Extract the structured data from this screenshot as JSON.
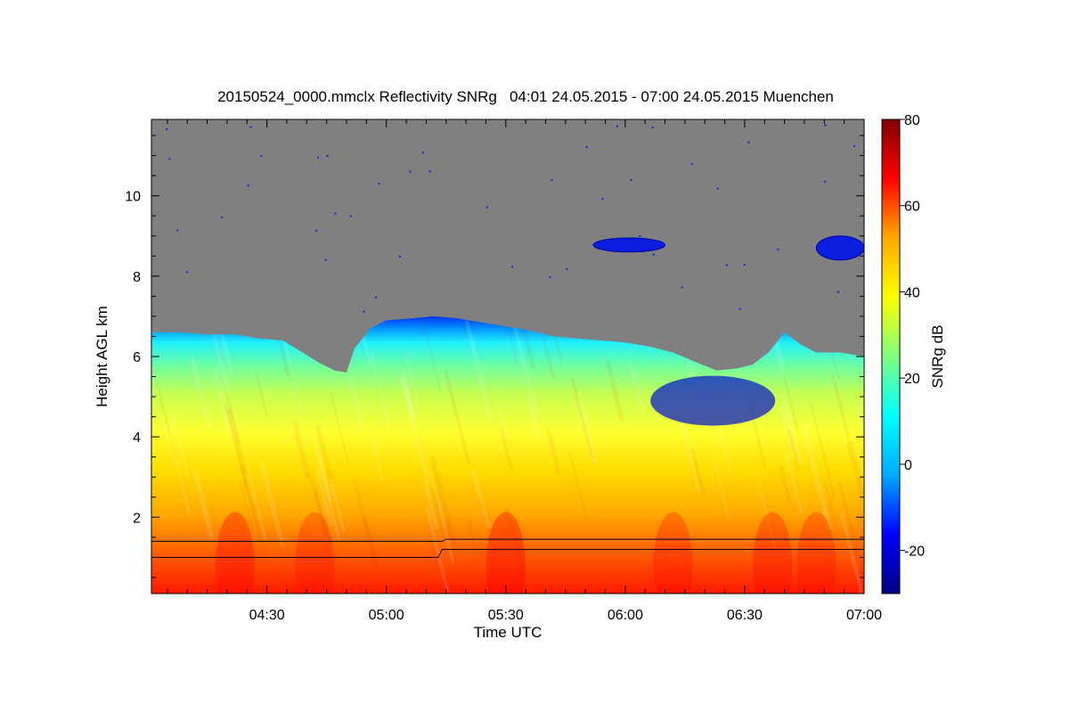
{
  "chart_data": {
    "type": "heatmap",
    "title": "20150524_0000.mmclx Reflectivity SNRg   04:01 24.05.2015 - 07:00 24.05.2015 Muenchen",
    "xlabel": "Time UTC",
    "ylabel": "Height AGL km",
    "colorbar_label": "SNRg dB",
    "x_range_minutes_utc": [
      241,
      420
    ],
    "y_range_km": [
      0.1,
      11.9
    ],
    "x_ticks": [
      {
        "label": "04:30",
        "minute": 270
      },
      {
        "label": "05:00",
        "minute": 300
      },
      {
        "label": "05:30",
        "minute": 330
      },
      {
        "label": "06:00",
        "minute": 360
      },
      {
        "label": "06:30",
        "minute": 390
      },
      {
        "label": "07:00",
        "minute": 420
      }
    ],
    "y_ticks": [
      2,
      4,
      6,
      8,
      10
    ],
    "colorbar_range_db": [
      -30,
      80
    ],
    "colorbar_ticks": [
      -20,
      0,
      20,
      40,
      60,
      80
    ],
    "no_signal_color": "#808080",
    "colormap_stops": [
      "#00007f",
      "#0000ff",
      "#00aaff",
      "#00ffff",
      "#7fff7f",
      "#ffff00",
      "#ffaa00",
      "#ff0000",
      "#7f0000"
    ],
    "echo_top_km": [
      {
        "minute": 241,
        "km": 6.6
      },
      {
        "minute": 248,
        "km": 6.6
      },
      {
        "minute": 255,
        "km": 6.55
      },
      {
        "minute": 262,
        "km": 6.55
      },
      {
        "minute": 268,
        "km": 6.45
      },
      {
        "minute": 274,
        "km": 6.4
      },
      {
        "minute": 279,
        "km": 6.1
      },
      {
        "minute": 283,
        "km": 5.85
      },
      {
        "minute": 287,
        "km": 5.65
      },
      {
        "minute": 290,
        "km": 5.6
      },
      {
        "minute": 292,
        "km": 6.2
      },
      {
        "minute": 296,
        "km": 6.7
      },
      {
        "minute": 300,
        "km": 6.9
      },
      {
        "minute": 306,
        "km": 6.95
      },
      {
        "minute": 312,
        "km": 7.0
      },
      {
        "minute": 318,
        "km": 6.95
      },
      {
        "minute": 324,
        "km": 6.85
      },
      {
        "minute": 330,
        "km": 6.75
      },
      {
        "minute": 336,
        "km": 6.65
      },
      {
        "minute": 342,
        "km": 6.5
      },
      {
        "minute": 348,
        "km": 6.45
      },
      {
        "minute": 354,
        "km": 6.4
      },
      {
        "minute": 360,
        "km": 6.35
      },
      {
        "minute": 366,
        "km": 6.25
      },
      {
        "minute": 372,
        "km": 6.1
      },
      {
        "minute": 378,
        "km": 5.85
      },
      {
        "minute": 383,
        "km": 5.65
      },
      {
        "minute": 388,
        "km": 5.7
      },
      {
        "minute": 392,
        "km": 5.8
      },
      {
        "minute": 396,
        "km": 6.1
      },
      {
        "minute": 400,
        "km": 6.6
      },
      {
        "minute": 404,
        "km": 6.3
      },
      {
        "minute": 408,
        "km": 6.1
      },
      {
        "minute": 414,
        "km": 6.1
      },
      {
        "minute": 420,
        "km": 6.0
      }
    ],
    "upper_cloud_patches": [
      {
        "minute_start": 352,
        "minute_end": 370,
        "km_low": 8.6,
        "km_high": 8.95
      },
      {
        "minute_start": 408,
        "minute_end": 420,
        "km_low": 8.4,
        "km_high": 9.0
      }
    ],
    "line_upper_km": [
      {
        "minute": 241,
        "km": 1.4
      },
      {
        "minute": 314,
        "km": 1.4
      },
      {
        "minute": 315,
        "km": 1.45
      },
      {
        "minute": 420,
        "km": 1.45
      }
    ],
    "line_lower_km": [
      {
        "minute": 241,
        "km": 1.0
      },
      {
        "minute": 313,
        "km": 1.0
      },
      {
        "minute": 314,
        "km": 1.2
      },
      {
        "minute": 420,
        "km": 1.2
      }
    ]
  }
}
